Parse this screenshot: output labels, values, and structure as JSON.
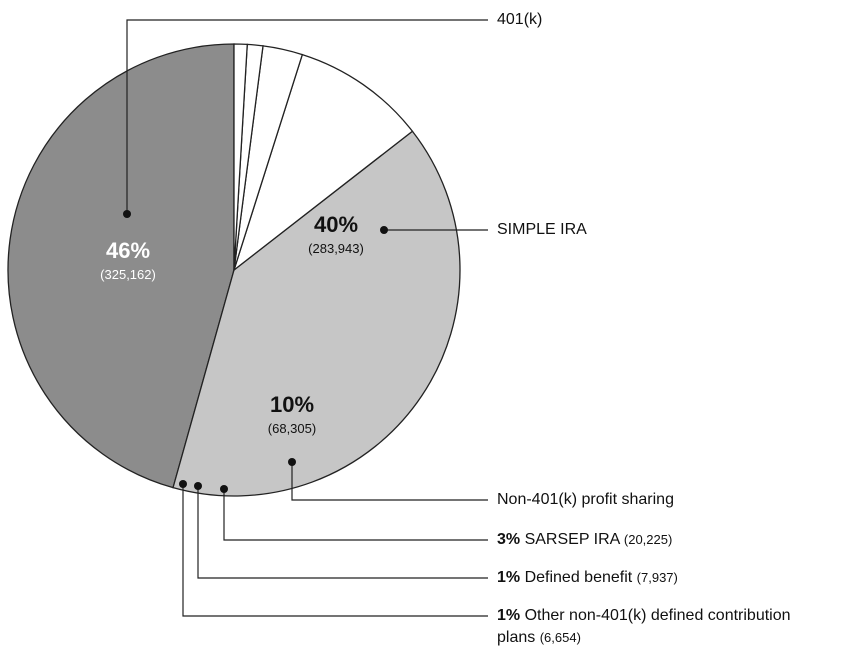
{
  "chart_data": {
    "type": "pie",
    "categories": [
      "401(k)",
      "SIMPLE IRA",
      "Non-401(k) profit sharing",
      "SARSEP IRA",
      "Defined benefit",
      "Other non-401(k) defined contribution plans"
    ],
    "values": [
      46,
      40,
      10,
      3,
      1,
      1
    ],
    "value_labels": [
      "46%",
      "40%",
      "10%",
      "3%",
      "1%",
      "1%"
    ],
    "counts": [
      325162,
      283943,
      68305,
      20225,
      7937,
      6654
    ],
    "count_labels": [
      "(325,162)",
      "(283,943)",
      "(68,305)",
      "(20,225)",
      "(7,937)",
      "(6,654)"
    ],
    "colors": [
      "#8c8c8c",
      "#c6c6c6",
      "#ffffff",
      "#ffffff",
      "#ffffff",
      "#ffffff"
    ]
  }
}
